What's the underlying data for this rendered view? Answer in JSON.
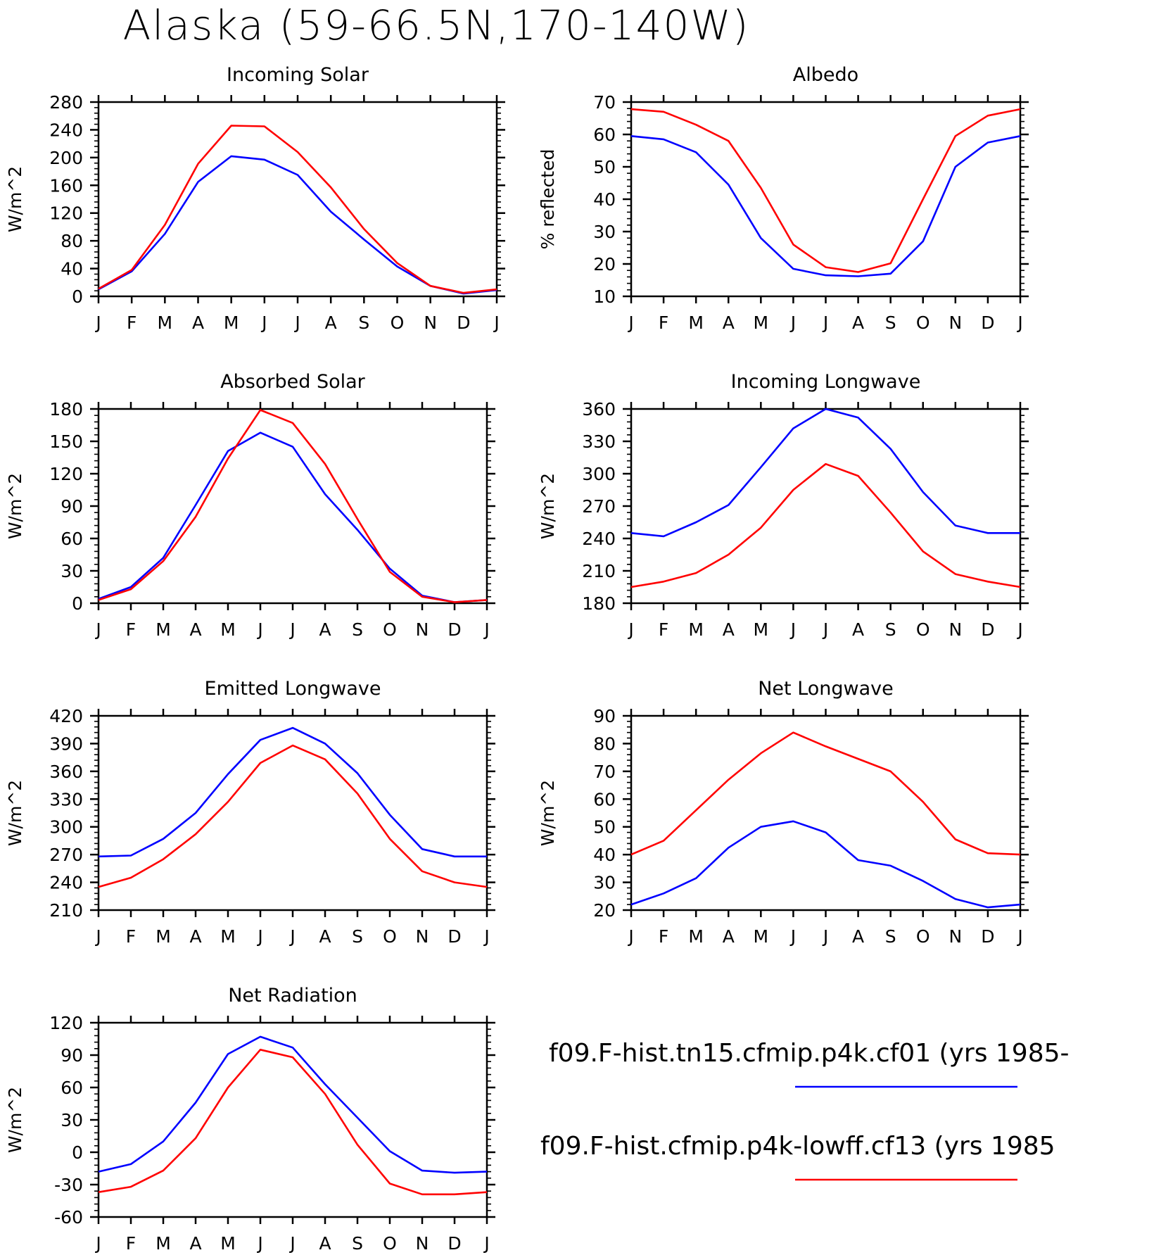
{
  "page_title": "Alaska (59-66.5N,170-140W)",
  "colors": {
    "series_1": "#0000ff",
    "series_2": "#ff0000",
    "axes": "#000000"
  },
  "legend": [
    {
      "label": "f09.F-hist.tn15.cfmip.p4k.cf01 (yrs 1985-",
      "color": "#0000ff"
    },
    {
      "label": "f09.F-hist.cfmip.p4k-lowff.cf13 (yrs 1985",
      "color": "#ff0000"
    }
  ],
  "chart_data": [
    {
      "type": "line",
      "title": "Incoming Solar",
      "ylabel": "W/m^2",
      "categories": [
        "J",
        "F",
        "M",
        "A",
        "M",
        "J",
        "J",
        "A",
        "S",
        "O",
        "N",
        "D",
        "J"
      ],
      "ylim": [
        0,
        280
      ],
      "yticks": [
        0,
        40,
        80,
        120,
        160,
        200,
        240,
        280
      ],
      "series": [
        {
          "color": "#0000ff",
          "values": [
            10,
            36,
            90,
            165,
            202,
            197,
            175,
            122,
            82,
            43,
            15,
            4,
            9
          ]
        },
        {
          "color": "#ff0000",
          "values": [
            11,
            38,
            103,
            191,
            246,
            245,
            208,
            157,
            97,
            48,
            15,
            5,
            10
          ]
        }
      ]
    },
    {
      "type": "line",
      "title": "Albedo",
      "ylabel": "% reflected",
      "categories": [
        "J",
        "F",
        "M",
        "A",
        "M",
        "J",
        "J",
        "A",
        "S",
        "O",
        "N",
        "D",
        "J"
      ],
      "ylim": [
        10,
        70
      ],
      "yticks": [
        10,
        20,
        30,
        40,
        50,
        60,
        70
      ],
      "series": [
        {
          "color": "#0000ff",
          "values": [
            59.5,
            58.5,
            54.5,
            44.5,
            28,
            18.5,
            16.5,
            16.2,
            17,
            27,
            50,
            57.5,
            59.5
          ]
        },
        {
          "color": "#ff0000",
          "values": [
            67.8,
            67,
            63,
            58,
            43.5,
            26,
            19,
            17.5,
            20.2,
            40,
            59.5,
            65.8,
            67.8
          ]
        }
      ]
    },
    {
      "type": "line",
      "title": "Absorbed Solar",
      "ylabel": "W/m^2",
      "categories": [
        "J",
        "F",
        "M",
        "A",
        "M",
        "J",
        "J",
        "A",
        "S",
        "O",
        "N",
        "D",
        "J"
      ],
      "ylim": [
        0,
        180
      ],
      "yticks": [
        0,
        30,
        60,
        90,
        120,
        150,
        180
      ],
      "series": [
        {
          "color": "#0000ff",
          "values": [
            4,
            15,
            42,
            91,
            141,
            158,
            145,
            101,
            68,
            32,
            7,
            1,
            3
          ]
        },
        {
          "color": "#ff0000",
          "values": [
            3,
            13,
            39,
            80,
            134,
            179,
            167,
            129,
            78,
            29,
            6,
            1,
            3
          ]
        }
      ]
    },
    {
      "type": "line",
      "title": "Incoming Longwave",
      "ylabel": "W/m^2",
      "categories": [
        "J",
        "F",
        "M",
        "A",
        "M",
        "J",
        "J",
        "A",
        "S",
        "O",
        "N",
        "D",
        "J"
      ],
      "ylim": [
        180,
        360
      ],
      "yticks": [
        180,
        210,
        240,
        270,
        300,
        330,
        360
      ],
      "series": [
        {
          "color": "#0000ff",
          "values": [
            245,
            242,
            255,
            271,
            306,
            342,
            360,
            352,
            323,
            283,
            252,
            245,
            245
          ]
        },
        {
          "color": "#ff0000",
          "values": [
            195,
            200,
            208,
            225,
            250,
            285,
            309,
            298,
            264,
            228,
            207,
            200,
            195
          ]
        }
      ]
    },
    {
      "type": "line",
      "title": "Emitted Longwave",
      "ylabel": "W/m^2",
      "categories": [
        "J",
        "F",
        "M",
        "A",
        "M",
        "J",
        "J",
        "A",
        "S",
        "O",
        "N",
        "D",
        "J"
      ],
      "ylim": [
        210,
        420
      ],
      "yticks": [
        210,
        240,
        270,
        300,
        330,
        360,
        390,
        420
      ],
      "series": [
        {
          "color": "#0000ff",
          "values": [
            268,
            269,
            287,
            315,
            357,
            394,
            407,
            390,
            358,
            313,
            276,
            268,
            268
          ]
        },
        {
          "color": "#ff0000",
          "values": [
            235,
            245,
            265,
            292,
            327,
            369,
            388,
            373,
            336,
            287,
            252,
            240,
            235
          ]
        }
      ]
    },
    {
      "type": "line",
      "title": "Net Longwave",
      "ylabel": "W/m^2",
      "categories": [
        "J",
        "F",
        "M",
        "A",
        "M",
        "J",
        "J",
        "A",
        "S",
        "O",
        "N",
        "D",
        "J"
      ],
      "ylim": [
        20,
        90
      ],
      "yticks": [
        20,
        30,
        40,
        50,
        60,
        70,
        80,
        90
      ],
      "series": [
        {
          "color": "#0000ff",
          "values": [
            22,
            26,
            31.5,
            42.5,
            50,
            52,
            48,
            38,
            36,
            30.5,
            24,
            21,
            22
          ]
        },
        {
          "color": "#ff0000",
          "values": [
            40,
            45,
            56,
            67,
            76.5,
            84,
            79,
            74.5,
            70,
            59,
            45.5,
            40.5,
            40
          ]
        }
      ]
    },
    {
      "type": "line",
      "title": "Net Radiation",
      "ylabel": "W/m^2",
      "categories": [
        "J",
        "F",
        "M",
        "A",
        "M",
        "J",
        "J",
        "A",
        "S",
        "O",
        "N",
        "D",
        "J"
      ],
      "ylim": [
        -60,
        120
      ],
      "yticks": [
        -60,
        -30,
        0,
        30,
        60,
        90,
        120
      ],
      "series": [
        {
          "color": "#0000ff",
          "values": [
            -18,
            -11,
            10,
            46,
            91,
            107,
            97,
            63,
            32,
            1,
            -17,
            -19,
            -18
          ]
        },
        {
          "color": "#ff0000",
          "values": [
            -37,
            -32,
            -17,
            13,
            60,
            95,
            88,
            54,
            7,
            -29,
            -39,
            -39,
            -37
          ]
        }
      ]
    }
  ]
}
